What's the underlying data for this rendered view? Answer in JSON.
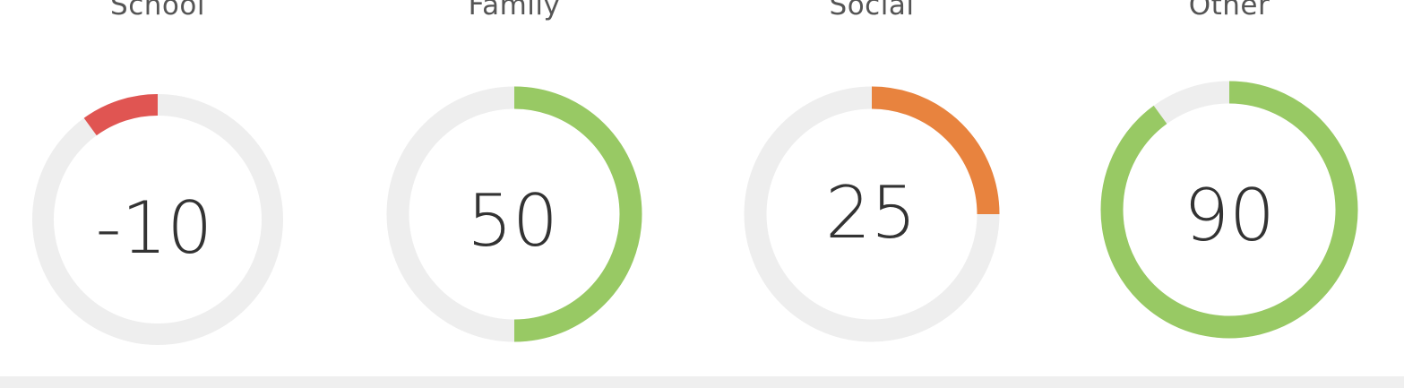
{
  "gauges": [
    {
      "id": "school",
      "label": "School",
      "value": -10,
      "display": "-10",
      "color": "#e05552"
    },
    {
      "id": "family",
      "label": "Family",
      "value": 50,
      "display": "50",
      "color": "#98c964"
    },
    {
      "id": "social",
      "label": "Social",
      "value": 25,
      "display": "25",
      "color": "#e8833e"
    },
    {
      "id": "other",
      "label": "Other",
      "value": 90,
      "display": "90",
      "color": "#98c964"
    }
  ],
  "colors": {
    "track": "#eeeeee",
    "text": "#333333",
    "title": "#555555"
  }
}
